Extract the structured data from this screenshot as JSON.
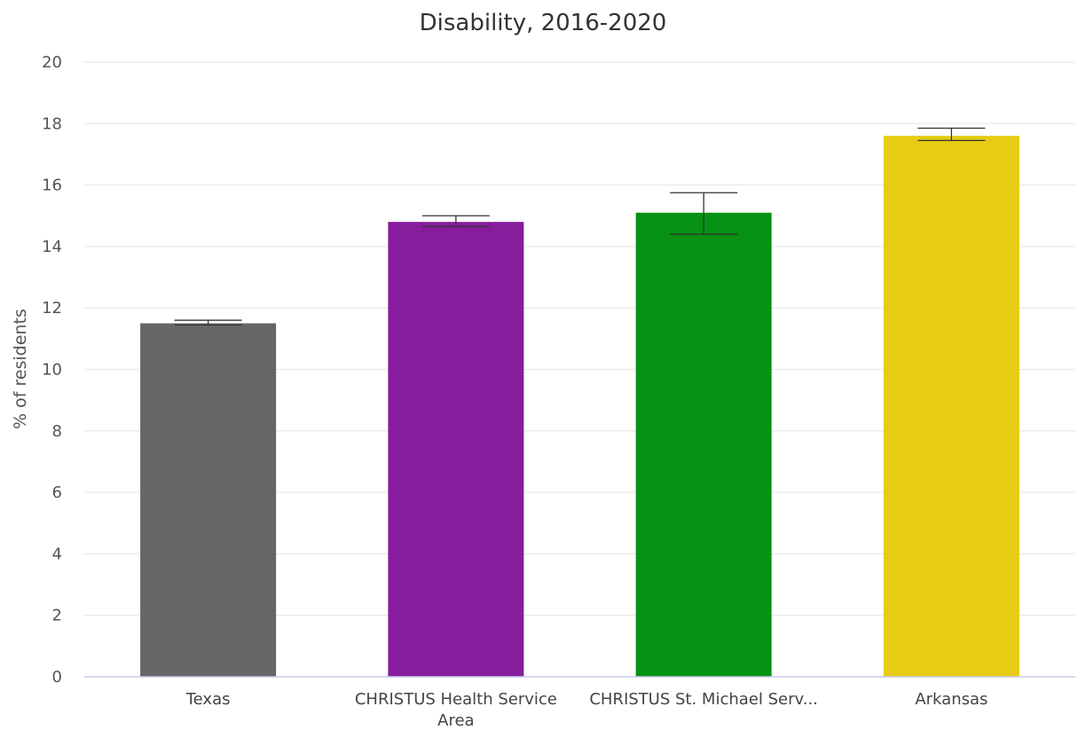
{
  "chart_data": {
    "type": "bar",
    "title": "Disability, 2016-2020",
    "xlabel": "",
    "ylabel": "% of residents",
    "ylim": [
      0,
      20
    ],
    "yticks": [
      0,
      2,
      4,
      6,
      8,
      10,
      12,
      14,
      16,
      18,
      20
    ],
    "grid": true,
    "legend": "none",
    "categories": [
      [
        "Texas"
      ],
      [
        "CHRISTUS Health Service",
        "Area"
      ],
      [
        "CHRISTUS St. Michael Serv..."
      ],
      [
        "Arkansas"
      ]
    ],
    "values": [
      11.5,
      14.8,
      15.1,
      17.6
    ],
    "error_low": [
      11.45,
      14.65,
      14.4,
      17.45
    ],
    "error_high": [
      11.6,
      15.0,
      15.75,
      17.85
    ],
    "colors": [
      "#666666",
      "#861d9c",
      "#069214",
      "#e6cc12"
    ]
  }
}
